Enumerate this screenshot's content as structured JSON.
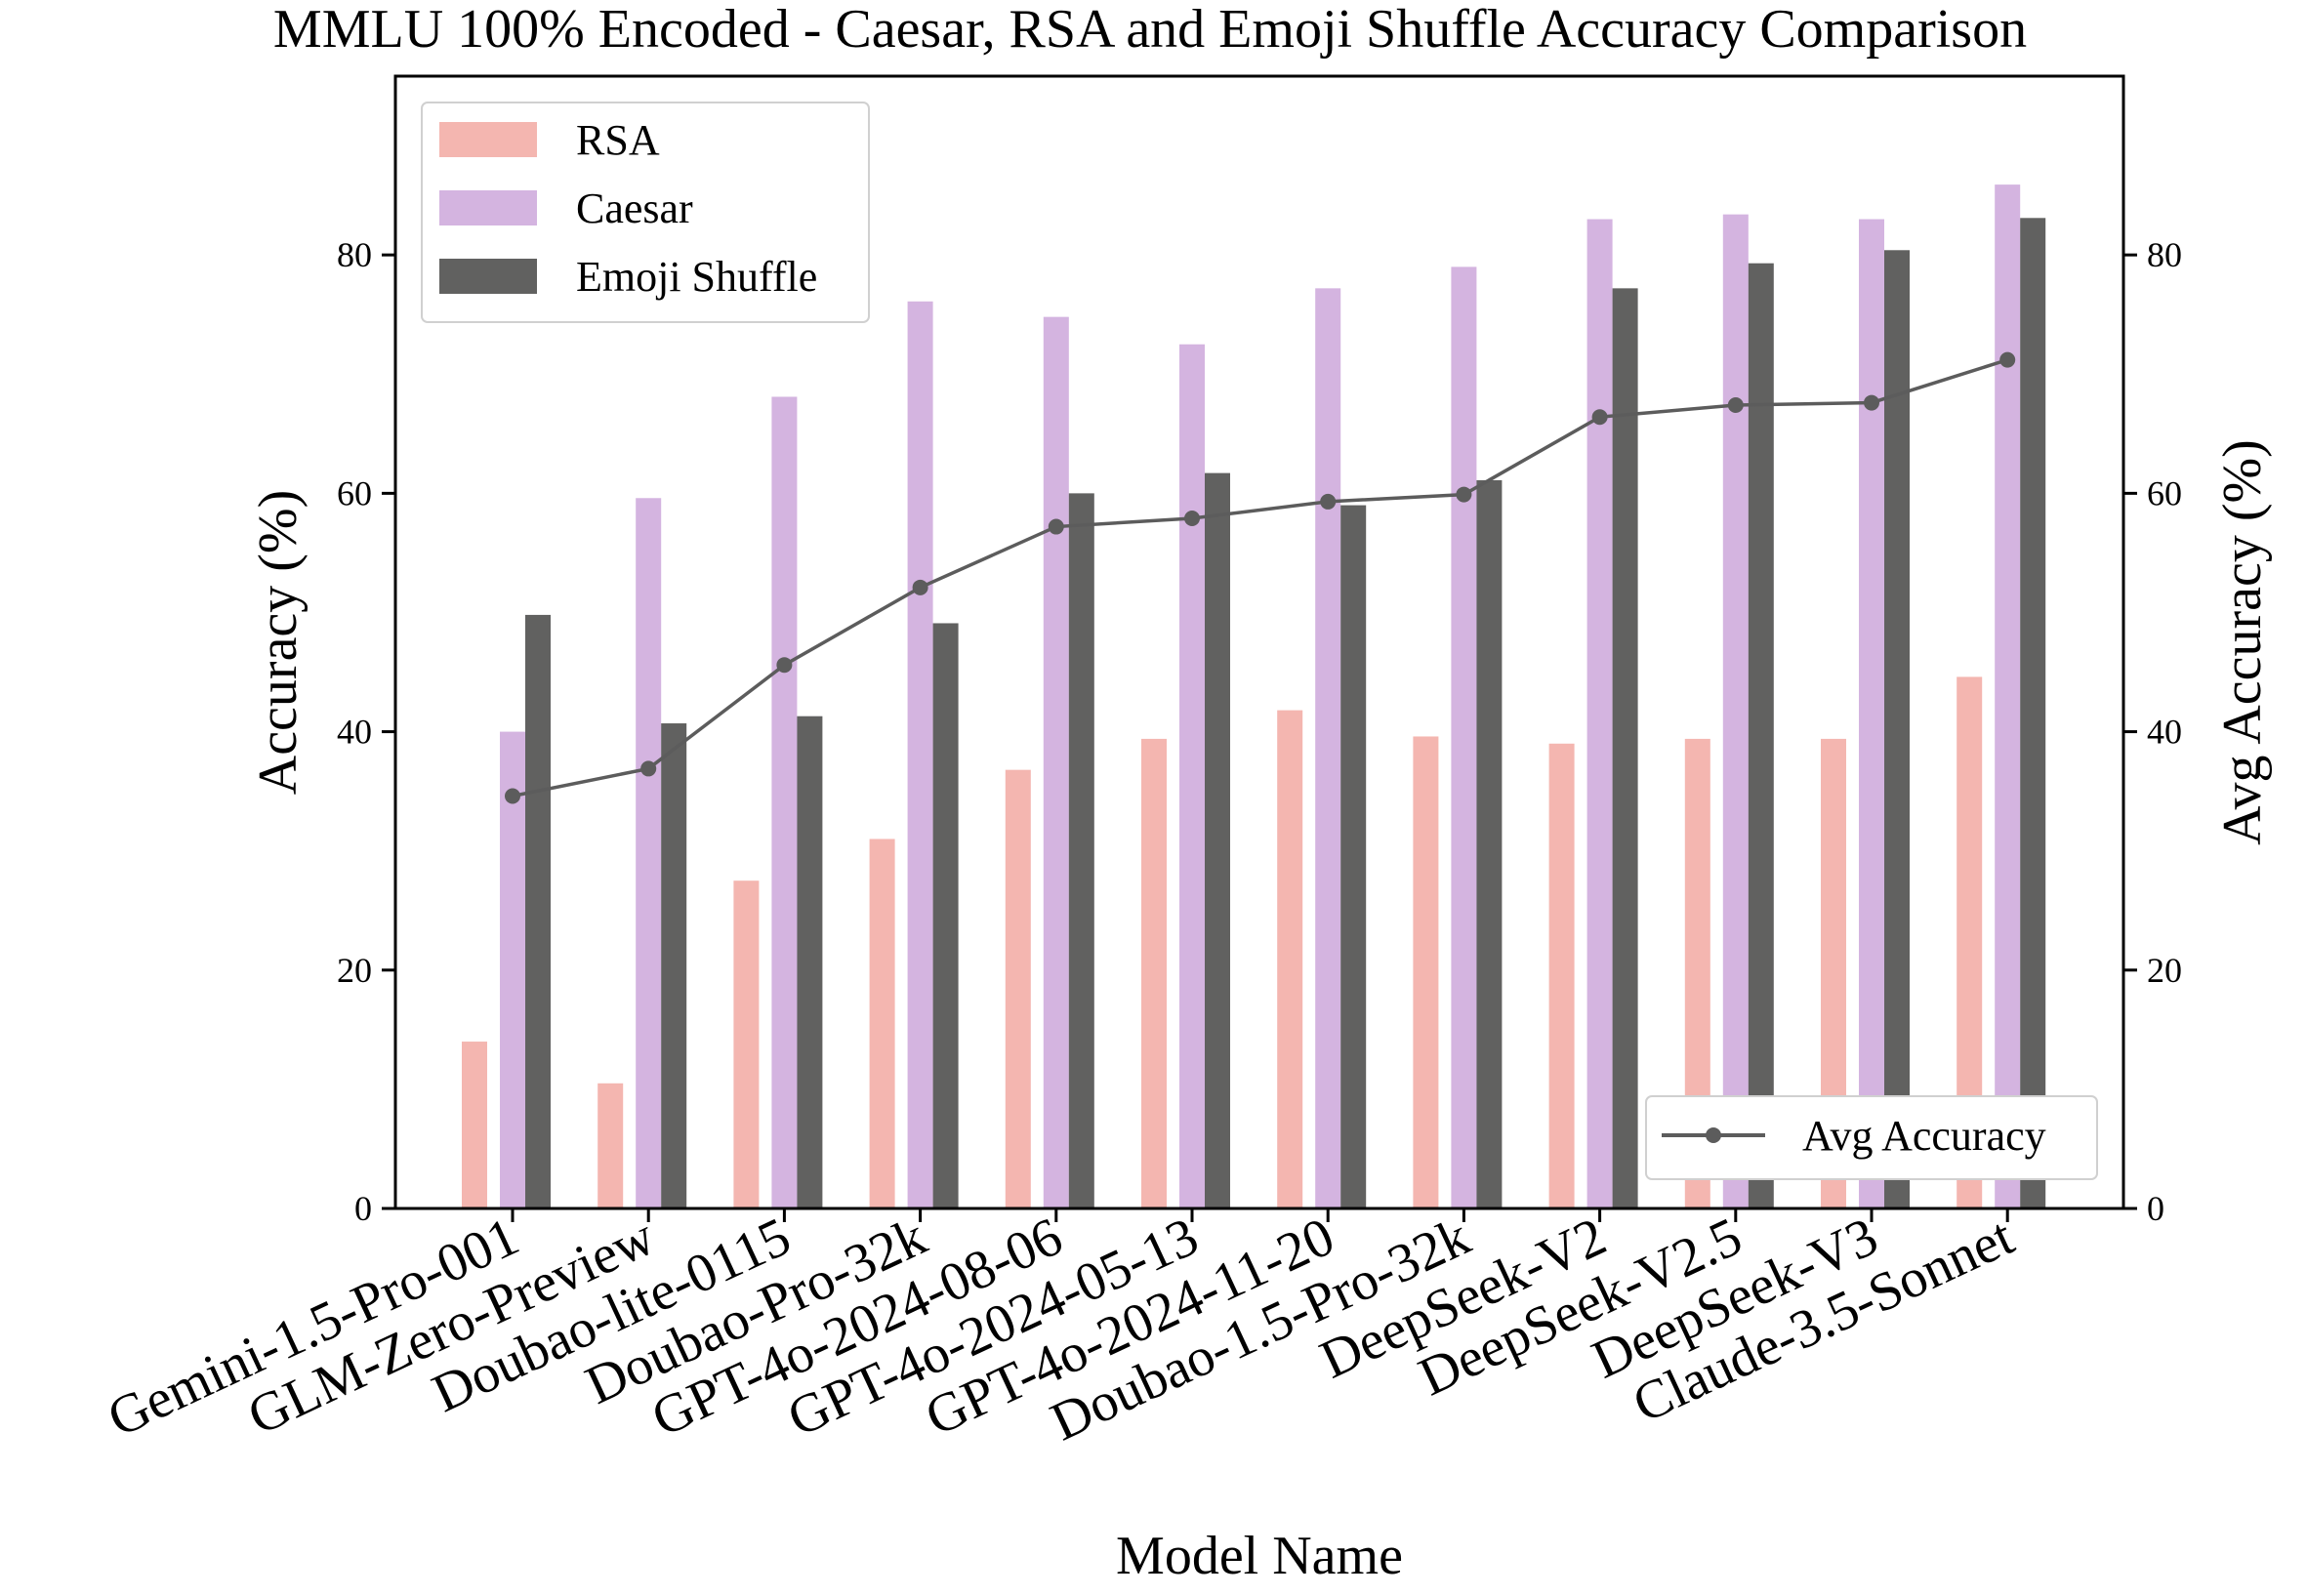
{
  "chart_data": {
    "type": "bar",
    "title": "MMLU 100% Encoded - Caesar, RSA and Emoji Shuffle Accuracy Comparison",
    "xlabel": "Model Name",
    "ylabel": "Accuracy (%)",
    "y2label": "Avg Accuracy (%)",
    "ylim": [
      0,
      95
    ],
    "y2lim": [
      0,
      95
    ],
    "yticks": [
      0,
      20,
      40,
      60,
      80
    ],
    "grid": false,
    "categories": [
      "Gemini-1.5-Pro-001",
      "GLM-Zero-Preview",
      "Doubao-lite-0115",
      "Doubao-Pro-32k",
      "GPT-4o-2024-08-06",
      "GPT-4o-2024-05-13",
      "GPT-4o-2024-11-20",
      "Doubao-1.5-Pro-32k",
      "DeepSeek-V2",
      "DeepSeek-V2.5",
      "DeepSeek-V3",
      "Claude-3.5-Sonnet"
    ],
    "series": [
      {
        "name": "RSA",
        "color": "#f4b6b0",
        "values": [
          14.0,
          10.5,
          27.5,
          31.0,
          36.8,
          39.4,
          41.8,
          39.6,
          39.0,
          39.4,
          39.4,
          44.6
        ]
      },
      {
        "name": "Caesar",
        "color": "#d4b4e0",
        "values": [
          40.0,
          59.6,
          68.1,
          76.1,
          74.8,
          72.5,
          77.2,
          79.0,
          83.0,
          83.4,
          83.0,
          85.9
        ]
      },
      {
        "name": "Emoji Shuffle",
        "color": "#616160",
        "values": [
          49.8,
          40.7,
          41.3,
          49.1,
          60.0,
          61.7,
          59.0,
          61.1,
          77.2,
          79.3,
          80.4,
          83.1
        ]
      }
    ],
    "line": {
      "name": "Avg Accuracy",
      "color": "#5c5c5c",
      "values": [
        34.6,
        36.9,
        45.6,
        52.1,
        57.2,
        57.9,
        59.3,
        59.9,
        66.4,
        67.4,
        67.6,
        71.2
      ]
    },
    "legend_bars": "top-left",
    "legend_line": "bottom-right"
  }
}
